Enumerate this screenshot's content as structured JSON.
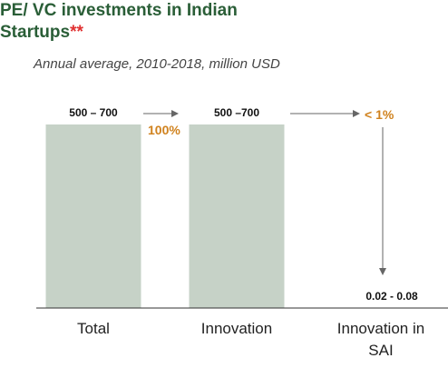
{
  "chart_data": {
    "type": "bar",
    "title": "PE/ VC investments in Indian Startups",
    "title_suffix": "**",
    "subtitle": "Annual average, 2010-2018, million USD",
    "categories": [
      "Total",
      "Innovation",
      "Innovation in SAI"
    ],
    "values": [
      [
        500,
        700
      ],
      [
        500,
        700
      ],
      [
        0.02,
        0.08
      ]
    ],
    "value_labels": [
      "500 – 700",
      "500 –700",
      "0.02  - 0.08"
    ],
    "color": "#c6d2c7",
    "annotations": [
      "100%",
      "< 1%"
    ]
  }
}
